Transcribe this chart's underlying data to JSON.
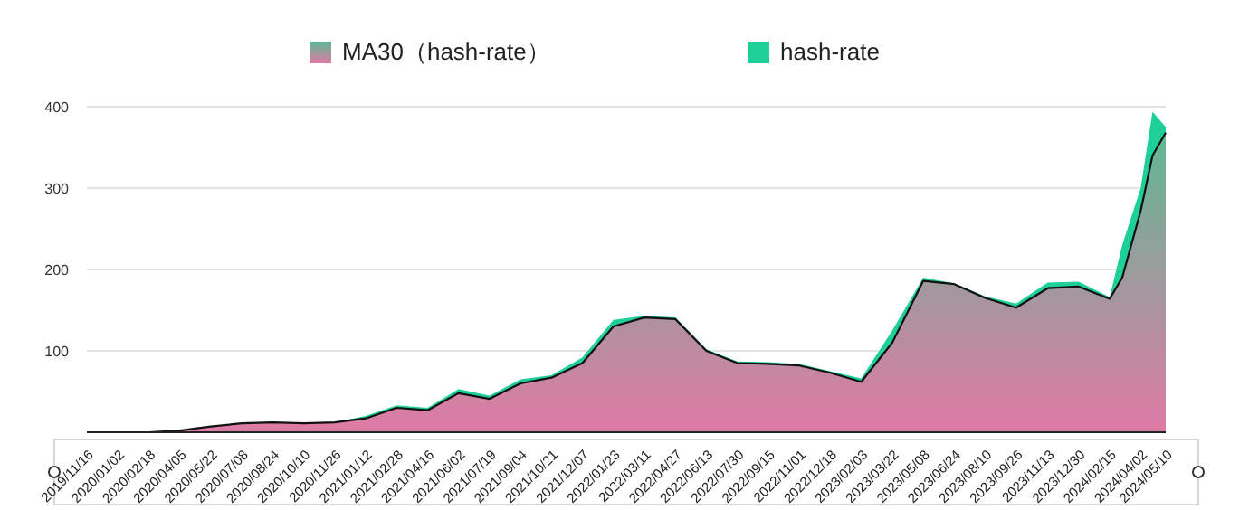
{
  "chart_data": {
    "type": "area",
    "x": [
      "2019-11-16",
      "2020-01-02",
      "2020-02-18",
      "2020-04-05",
      "2020-05-22",
      "2020-07-08",
      "2020-08-24",
      "2020-10-10",
      "2020-11-26",
      "2021-01-12",
      "2021-02-28",
      "2021-04-16",
      "2021-06-02",
      "2021-07-19",
      "2021-09-04",
      "2021-10-21",
      "2021-12-07",
      "2022-01-23",
      "2022-03-11",
      "2022-04-27",
      "2022-06-13",
      "2022-07-30",
      "2022-09-15",
      "2022-11-01",
      "2022-12-18",
      "2023-02-03",
      "2023-03-22",
      "2023-05-08",
      "2023-06-24",
      "2023-08-10",
      "2023-09-26",
      "2023-11-13",
      "2023-12-30",
      "2024-02-15",
      "2024-03-05",
      "2024-04-02",
      "2024-04-20",
      "2024-05-10"
    ],
    "series": [
      {
        "name": "hash-rate",
        "color": "#1ecf98",
        "values": [
          0,
          0,
          0,
          2,
          7,
          11,
          12,
          11,
          12,
          20,
          33,
          30,
          53,
          45,
          65,
          70,
          92,
          138,
          143,
          141,
          102,
          87,
          86,
          84,
          75,
          66,
          125,
          190,
          183,
          167,
          158,
          184,
          185,
          166,
          230,
          300,
          394,
          375
        ]
      },
      {
        "name": "MA30（hash-rate）",
        "color": "#e07aa5",
        "values": [
          0,
          0,
          0,
          2,
          7,
          11,
          12,
          11,
          12,
          17,
          30,
          27,
          48,
          41,
          60,
          67,
          85,
          130,
          141,
          139,
          100,
          85,
          84,
          82,
          73,
          62,
          110,
          186,
          182,
          165,
          153,
          177,
          179,
          164,
          190,
          272,
          340,
          368
        ]
      }
    ],
    "ylim": [
      0,
      400
    ],
    "yticks": [
      100,
      200,
      300,
      400
    ],
    "xlim": [
      "2019-11-16",
      "2024-05-10"
    ],
    "xticks": [
      {
        "value": "2019-11-16",
        "label": "2019/11/16"
      },
      {
        "value": "2020-01-02",
        "label": "2020/01/02"
      },
      {
        "value": "2020-02-18",
        "label": "2020/02/18"
      },
      {
        "value": "2020-04-05",
        "label": "2020/04/05"
      },
      {
        "value": "2020-05-22",
        "label": "2020/05/22"
      },
      {
        "value": "2020-07-08",
        "label": "2020/07/08"
      },
      {
        "value": "2020-08-24",
        "label": "2020/08/24"
      },
      {
        "value": "2020-10-10",
        "label": "2020/10/10"
      },
      {
        "value": "2020-11-26",
        "label": "2020/11/26"
      },
      {
        "value": "2021-01-12",
        "label": "2021/01/12"
      },
      {
        "value": "2021-02-28",
        "label": "2021/02/28"
      },
      {
        "value": "2021-04-16",
        "label": "2021/04/16"
      },
      {
        "value": "2021-06-02",
        "label": "2021/06/02"
      },
      {
        "value": "2021-07-19",
        "label": "2021/07/19"
      },
      {
        "value": "2021-09-04",
        "label": "2021/09/04"
      },
      {
        "value": "2021-10-21",
        "label": "2021/10/21"
      },
      {
        "value": "2021-12-07",
        "label": "2021/12/07"
      },
      {
        "value": "2022-01-23",
        "label": "2022/01/23"
      },
      {
        "value": "2022-03-11",
        "label": "2022/03/11"
      },
      {
        "value": "2022-04-27",
        "label": "2022/04/27"
      },
      {
        "value": "2022-06-13",
        "label": "2022/06/13"
      },
      {
        "value": "2022-07-30",
        "label": "2022/07/30"
      },
      {
        "value": "2022-09-15",
        "label": "2022/09/15"
      },
      {
        "value": "2022-11-01",
        "label": "2022/11/01"
      },
      {
        "value": "2022-12-18",
        "label": "2022/12/18"
      },
      {
        "value": "2023-02-03",
        "label": "2023/02/03"
      },
      {
        "value": "2023-03-22",
        "label": "2023/03/22"
      },
      {
        "value": "2023-05-08",
        "label": "2023/05/08"
      },
      {
        "value": "2023-06-24",
        "label": "2023/06/24"
      },
      {
        "value": "2023-08-10",
        "label": "2023/08/10"
      },
      {
        "value": "2023-09-26",
        "label": "2023/09/26"
      },
      {
        "value": "2023-11-13",
        "label": "2023/11/13"
      },
      {
        "value": "2023-12-30",
        "label": "2023/12/30"
      },
      {
        "value": "2024-02-15",
        "label": "2024/02/15"
      },
      {
        "value": "2024-04-02",
        "label": "2024/04/02"
      },
      {
        "value": "2024-05-10",
        "label": "2024/05/10"
      }
    ],
    "grid": "y",
    "legend": "top"
  }
}
